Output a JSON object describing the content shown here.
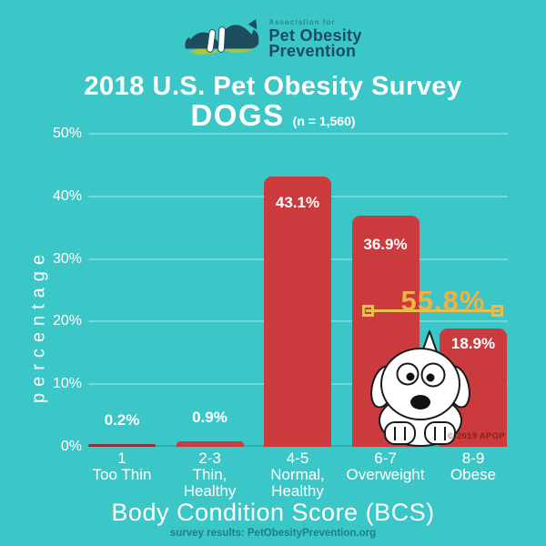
{
  "logo": {
    "association": "Association for",
    "name_line1": "Pet Obesity",
    "name_line2": "Prevention"
  },
  "title": {
    "line1": "2018 U.S. Pet Obesity Survey",
    "line2": "DOGS",
    "sample": "(n = 1,560)"
  },
  "chart_data": {
    "type": "bar",
    "title": "2018 U.S. Pet Obesity Survey — DOGS",
    "sample_size": "(n = 1,560)",
    "categories": [
      [
        "1",
        "Too Thin"
      ],
      [
        "2-3",
        "Thin,",
        "Healthy"
      ],
      [
        "4-5",
        "Normal,",
        "Healthy"
      ],
      [
        "6-7",
        "Overweight"
      ],
      [
        "8-9",
        "Obese"
      ]
    ],
    "values": [
      0.2,
      0.9,
      43.1,
      36.9,
      18.9
    ],
    "value_labels": [
      "0.2%",
      "0.9%",
      "43.1%",
      "36.9%",
      "18.9%"
    ],
    "xlabel": "Body Condition Score (BCS)",
    "ylabel": "percentage",
    "ylim": [
      0,
      50
    ],
    "yticks": [
      "0%",
      "10%",
      "20%",
      "30%",
      "40%",
      "50%"
    ],
    "grid": true,
    "legend": false,
    "annotation": {
      "label": "55.8%",
      "spans_categories": [
        "6-7",
        "8-9"
      ]
    },
    "bar_colors": [
      "#8E3138",
      "#CB3A3C",
      "#CB3A3C",
      "#CB3A3C",
      "#CB3A3C"
    ]
  },
  "colors": {
    "background": "#3BC6C8",
    "bar_red": "#CB3A3C",
    "annotation_gold": "#F3B143",
    "logo_navy": "#1D4C5E",
    "logo_green": "#A6C93F",
    "text_white": "#FFFFFF"
  },
  "footer": {
    "source": "survey results: PetObesityPrevention.org",
    "watermark": "© 2019 APOP"
  }
}
